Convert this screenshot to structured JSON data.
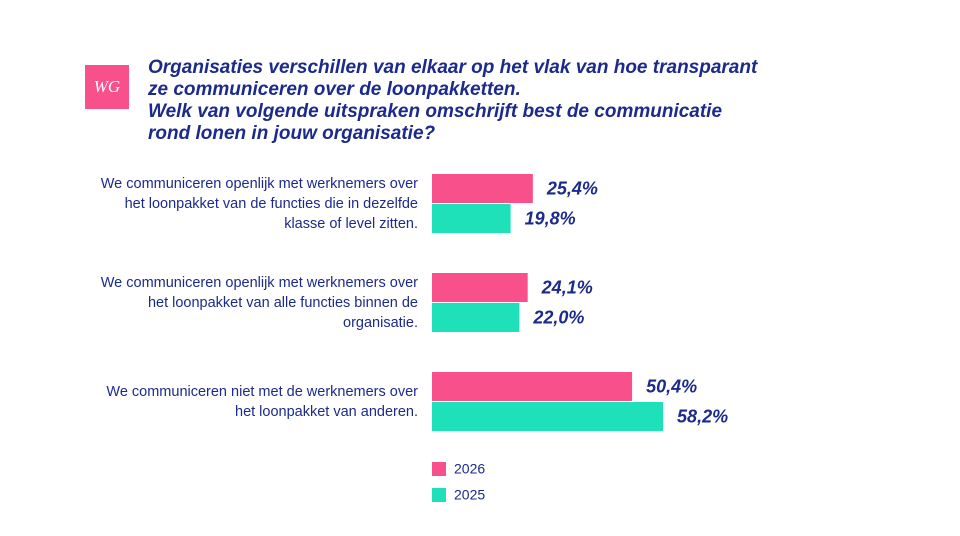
{
  "chart_data": {
    "type": "bar",
    "orientation": "horizontal",
    "logo": "WG",
    "title": "Organisaties verschillen van elkaar op het vlak van hoe transparant ze communiceren over de loonpakketten.",
    "subtitle": "Welk van volgende uitspraken omschrijft best de communicatie rond lonen in jouw organisatie?",
    "categories": [
      "We communiceren openlijk met werknemers over het loonpakket van de functies die in dezelfde klasse of level zitten.",
      "We communiceren openlijk met werknemers over het loonpakket van alle functies binnen de organisatie.",
      "We communiceren niet met de werknemers over het loonpakket van anderen."
    ],
    "series": [
      {
        "name": "2026",
        "color": "#f7508a",
        "values": [
          25.4,
          24.1,
          50.4
        ],
        "value_labels": [
          "25,4%",
          "24,1%",
          "50,4%"
        ]
      },
      {
        "name": "2025",
        "color": "#1ee0b9",
        "values": [
          19.8,
          22.0,
          58.2
        ],
        "value_labels": [
          "19,8%",
          "22,0%",
          "58,2%"
        ]
      }
    ]
  }
}
